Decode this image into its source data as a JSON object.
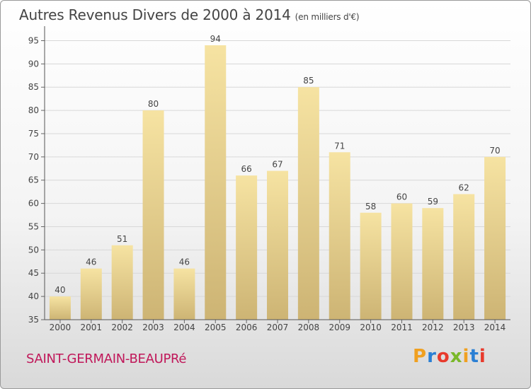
{
  "header": {
    "title": "Autres Revenus Divers de 2000 à 2014",
    "subtitle": "(en milliers d'€)"
  },
  "footer": {
    "commune": "SAINT-GERMAIN-BEAUPRé",
    "logo_text": "Proxiti",
    "logo_colors": [
      "#f0a020",
      "#2a7fd4",
      "#e83a2c",
      "#7ab82a",
      "#f0a020",
      "#2a7fd4",
      "#e83a2c"
    ]
  },
  "colors": {
    "bar_light": "#f6e3a2",
    "bar_dark": "#cdb474",
    "grid": "#d8d8d8",
    "axis_text": "#444444",
    "title": "#444444",
    "commune": "#c0185a"
  },
  "chart_data": {
    "type": "bar",
    "categories": [
      "2000",
      "2001",
      "2002",
      "2003",
      "2004",
      "2005",
      "2006",
      "2007",
      "2008",
      "2009",
      "2010",
      "2011",
      "2012",
      "2013",
      "2014"
    ],
    "values": [
      40,
      46,
      51,
      80,
      46,
      94,
      66,
      67,
      85,
      71,
      58,
      60,
      59,
      62,
      70
    ],
    "data_labels": [
      "40",
      "46",
      "51",
      "80",
      "46",
      "94",
      "66",
      "67",
      "85",
      "71",
      "58",
      "60",
      "59",
      "62",
      "70"
    ],
    "yticks": [
      35,
      40,
      45,
      50,
      55,
      60,
      65,
      70,
      75,
      80,
      85,
      90,
      95
    ],
    "ylim": [
      35,
      97.5
    ],
    "grid": true
  }
}
